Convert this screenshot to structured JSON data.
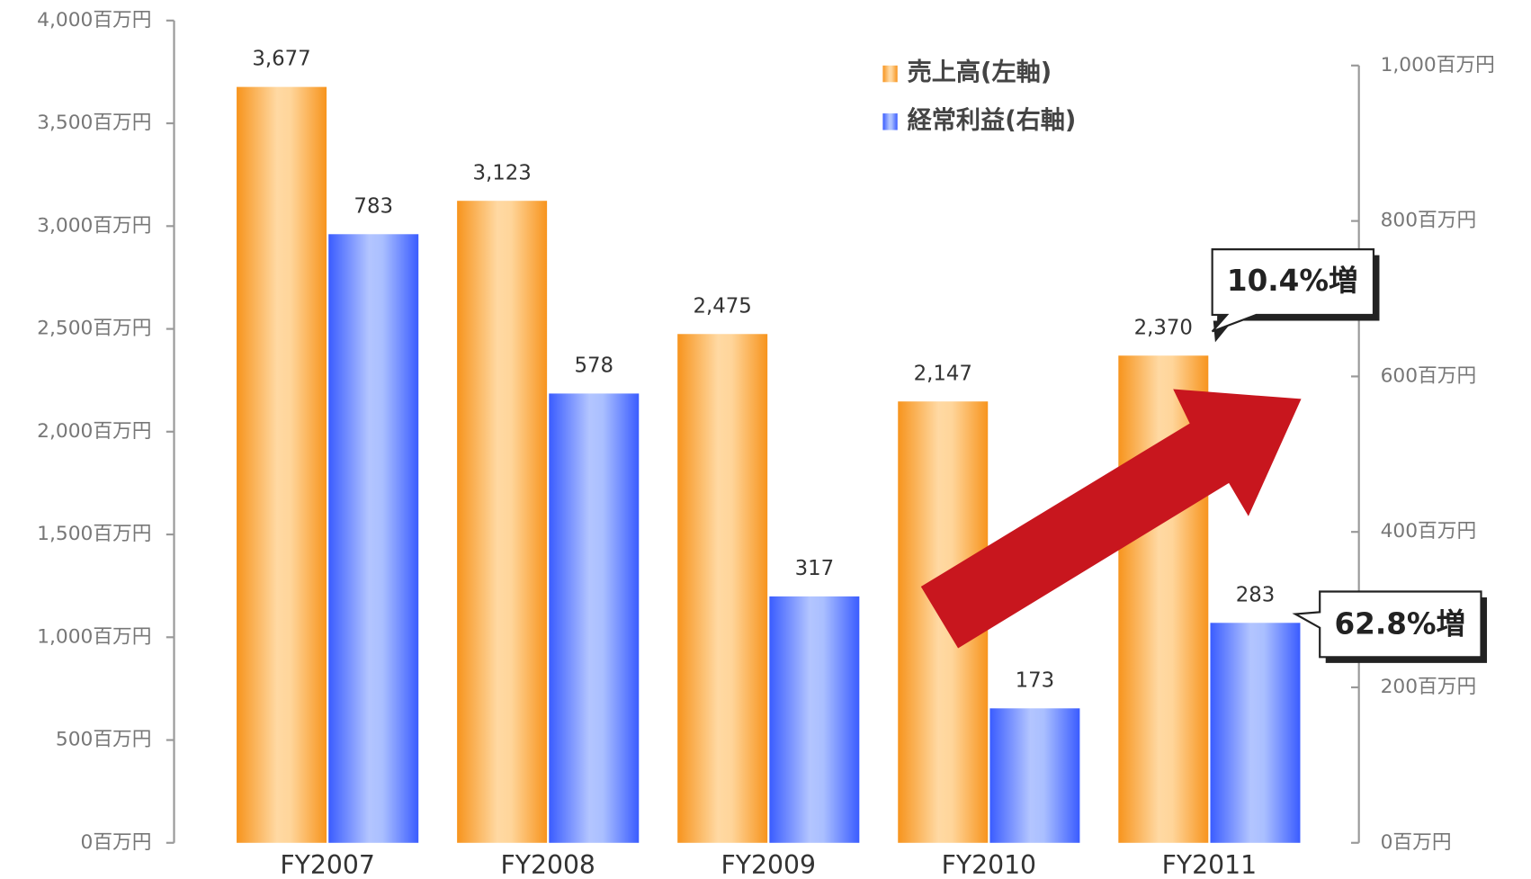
{
  "chart_data": {
    "type": "bar",
    "categories": [
      "FY2007",
      "FY2008",
      "FY2009",
      "FY2010",
      "FY2011"
    ],
    "series": [
      {
        "name": "売上高(左軸)",
        "color": "#f7941d",
        "values": [
          3677,
          3123,
          2475,
          2147,
          2370
        ],
        "value_labels": [
          "3,677",
          "3,123",
          "2,475",
          "2,147",
          "2,370"
        ]
      },
      {
        "name": "経常利益(右軸)",
        "color": "#3a5cff",
        "axis": "y2",
        "values": [
          783,
          578,
          317,
          173,
          283
        ]
      }
    ],
    "ylim": [
      0,
      4000
    ],
    "yticks": [
      {
        "value": 0,
        "label": "0百万円"
      },
      {
        "value": 500,
        "label": "500百万円"
      },
      {
        "value": 1000,
        "label": "1,000百万円"
      },
      {
        "value": 1500,
        "label": "1,500百万円"
      },
      {
        "value": 2000,
        "label": "2,000百万円"
      },
      {
        "value": 2500,
        "label": "2,500百万円"
      },
      {
        "value": 3000,
        "label": "3,000百万円"
      },
      {
        "value": 3500,
        "label": "3,500百万円"
      },
      {
        "value": 4000,
        "label": "4,000百万円"
      }
    ],
    "y2lim": [
      0,
      1000
    ],
    "y2ticks": [
      {
        "value": 0,
        "label": "0百万円"
      },
      {
        "value": 200,
        "label": "200百万円"
      },
      {
        "value": 400,
        "label": "400百万円"
      },
      {
        "value": 600,
        "label": "600百万円"
      },
      {
        "value": 800,
        "label": "800百万円"
      },
      {
        "value": 1000,
        "label": "1,000百万円"
      }
    ],
    "annotations": [
      "10.4%増",
      "62.8%増"
    ]
  }
}
